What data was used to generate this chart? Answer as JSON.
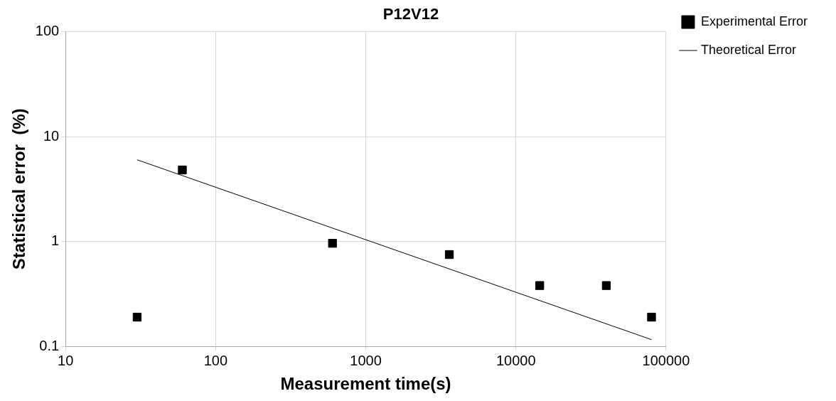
{
  "chart_data": {
    "type": "scatter",
    "title": "P12V12",
    "xlabel": "Measurement time(s)",
    "ylabel": "Statistical error  (%)",
    "log": "xy",
    "xlim": [
      10,
      100000
    ],
    "ylim": [
      0.1,
      100
    ],
    "xticks": [
      10,
      100,
      1000,
      10000,
      100000
    ],
    "yticks": [
      0.1,
      1,
      10,
      100
    ],
    "grid": true,
    "legend": "right",
    "series": [
      {
        "name": "Experimental Error",
        "marker": "square",
        "color": "#000000",
        "x": [
          30,
          60,
          600,
          3600,
          14400,
          40000,
          80000
        ],
        "values": [
          0.19,
          4.8,
          0.96,
          0.75,
          0.38,
          0.38,
          0.19
        ]
      },
      {
        "name": "Theoretical Error",
        "type": "line",
        "marker": "none",
        "color": "#000000",
        "x": [
          30,
          80000
        ],
        "values": [
          6,
          0.116
        ]
      }
    ]
  }
}
